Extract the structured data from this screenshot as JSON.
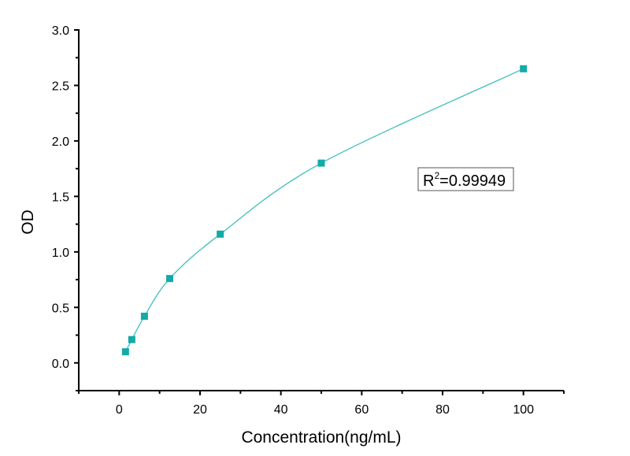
{
  "chart_data": {
    "type": "scatter",
    "title": "",
    "xlabel": "Concentration(ng/mL)",
    "ylabel": "OD",
    "xlim": [
      -10,
      110
    ],
    "ylim": [
      -0.25,
      3.0
    ],
    "xticks": [
      0,
      20,
      40,
      60,
      80,
      100
    ],
    "xtick_labels": [
      "0",
      "20",
      "40",
      "60",
      "80",
      "100"
    ],
    "yticks": [
      0.0,
      0.5,
      1.0,
      1.5,
      2.0,
      2.5,
      3.0
    ],
    "ytick_labels": [
      "0.0",
      "0.5",
      "1.0",
      "1.5",
      "2.0",
      "2.5",
      "3.0"
    ],
    "grid": false,
    "series": [
      {
        "x": [
          1.5625,
          3.125,
          6.25,
          12.5,
          25,
          50,
          100
        ],
        "y": [
          0.1,
          0.21,
          0.42,
          0.76,
          1.16,
          1.8,
          2.65
        ],
        "marker": "square",
        "fit_line": true
      }
    ],
    "annotation": {
      "r_label": "R",
      "r_sup": "2",
      "r_value": "=0.99949"
    },
    "colors": {
      "marker": "#13aaa8",
      "line": "#3fbfbd",
      "axis": "#000000"
    }
  }
}
